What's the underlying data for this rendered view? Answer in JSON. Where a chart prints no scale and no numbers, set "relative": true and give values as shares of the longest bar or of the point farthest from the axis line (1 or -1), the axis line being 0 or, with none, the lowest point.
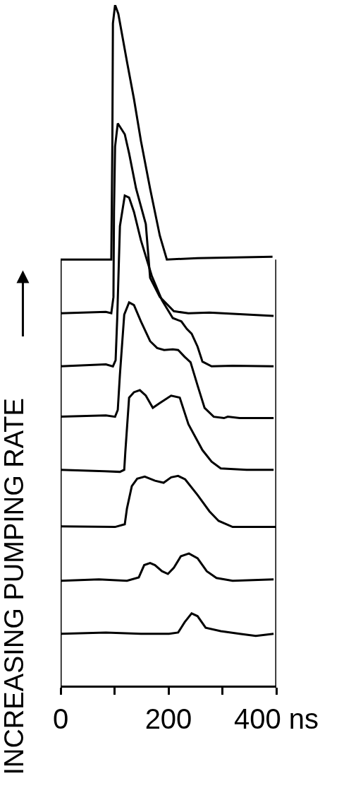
{
  "chart_data": {
    "type": "line",
    "ylabel": "INCREASING PUMPING RATE",
    "relative": true,
    "xlim": [
      0,
      400
    ],
    "xticks": [
      {
        "value": 0,
        "label": "0"
      },
      {
        "value": 100,
        "label": null
      },
      {
        "value": 200,
        "label": "200"
      },
      {
        "value": 300,
        "label": null
      },
      {
        "value": 400,
        "label": "400 ns"
      }
    ],
    "line_style": "solid",
    "series": [
      {
        "color": "#000000",
        "x": [
          0,
          84,
          149,
          201,
          218,
          230,
          243,
          254,
          269,
          297,
          332,
          362,
          395
        ],
        "values": [
          0.076,
          0.078,
          0.076,
          0.076,
          0.078,
          0.093,
          0.106,
          0.102,
          0.085,
          0.08,
          0.076,
          0.073,
          0.076
        ]
      },
      {
        "color": "#000000",
        "x": [
          0,
          71,
          123,
          145,
          155,
          166,
          175,
          188,
          199,
          210,
          223,
          238,
          254,
          271,
          289,
          319,
          395
        ],
        "values": [
          0.154,
          0.156,
          0.154,
          0.159,
          0.177,
          0.18,
          0.177,
          0.168,
          0.164,
          0.173,
          0.19,
          0.194,
          0.187,
          0.168,
          0.158,
          0.154,
          0.156
        ]
      },
      {
        "color": "#000000",
        "x": [
          0,
          101,
          119,
          123,
          132,
          142,
          156,
          175,
          191,
          205,
          218,
          231,
          254,
          276,
          293,
          319,
          400
        ],
        "values": [
          0.234,
          0.233,
          0.237,
          0.26,
          0.293,
          0.304,
          0.307,
          0.301,
          0.298,
          0.306,
          0.308,
          0.303,
          0.28,
          0.256,
          0.242,
          0.233,
          0.233
        ]
      },
      {
        "color": "#000000",
        "x": [
          0,
          82,
          110,
          118,
          120,
          127,
          136,
          147,
          158,
          171,
          184,
          205,
          221,
          237,
          263,
          280,
          297,
          345,
          395
        ],
        "values": [
          0.317,
          0.315,
          0.314,
          0.317,
          0.343,
          0.423,
          0.431,
          0.434,
          0.426,
          0.408,
          0.415,
          0.426,
          0.423,
          0.384,
          0.346,
          0.329,
          0.319,
          0.317,
          0.317
        ]
      },
      {
        "color": "#000000",
        "x": [
          0,
          84,
          101,
          106,
          110,
          118,
          127,
          136,
          149,
          166,
          179,
          192,
          208,
          218,
          230,
          241,
          254,
          267,
          284,
          303,
          310,
          332,
          395
        ],
        "values": [
          0.395,
          0.397,
          0.395,
          0.405,
          0.457,
          0.545,
          0.563,
          0.559,
          0.535,
          0.506,
          0.496,
          0.493,
          0.494,
          0.493,
          0.483,
          0.475,
          0.441,
          0.408,
          0.395,
          0.393,
          0.395,
          0.393,
          0.393
        ]
      },
      {
        "color": "#000000",
        "x": [
          0,
          84,
          97,
          102,
          105,
          110,
          119,
          127,
          136,
          149,
          169,
          188,
          208,
          224,
          234,
          243,
          254,
          263,
          280,
          319,
          395
        ],
        "values": [
          0.469,
          0.472,
          0.469,
          0.478,
          0.54,
          0.675,
          0.72,
          0.717,
          0.696,
          0.654,
          0.602,
          0.566,
          0.54,
          0.535,
          0.524,
          0.517,
          0.498,
          0.476,
          0.469,
          0.47,
          0.469
        ]
      },
      {
        "color": "#000000",
        "x": [
          0,
          84,
          94,
          98,
          99,
          101,
          106,
          119,
          127,
          140,
          158,
          166,
          184,
          210,
          237,
          276,
          395
        ],
        "values": [
          0.547,
          0.549,
          0.547,
          0.571,
          0.696,
          0.792,
          0.826,
          0.81,
          0.782,
          0.73,
          0.678,
          0.599,
          0.571,
          0.55,
          0.547,
          0.548,
          0.543
        ]
      },
      {
        "color": "#000000",
        "x": [
          0,
          94,
          96,
          97,
          101,
          107,
          123,
          136,
          149,
          166,
          184,
          197,
          254,
          393
        ],
        "values": [
          0.626,
          0.626,
          0.8,
          0.973,
          1.0,
          0.987,
          0.917,
          0.862,
          0.8,
          0.73,
          0.661,
          0.626,
          0.628,
          0.63
        ]
      }
    ]
  }
}
